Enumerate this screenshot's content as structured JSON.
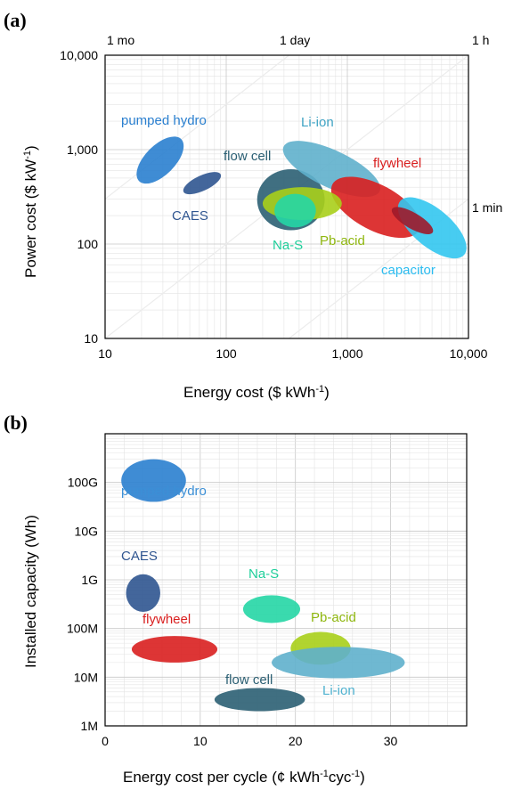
{
  "panels": [
    {
      "panel_label": "(a)",
      "chart_data": {
        "type": "scatter",
        "xscale": "log",
        "yscale": "log",
        "xlim": [
          10,
          10000
        ],
        "ylim": [
          10,
          10000
        ],
        "xlabel": "Energy cost ($ kWh",
        "xlabel_sup": "-1",
        "xlabel_end": ")",
        "ylabel": "Power cost ($ kW",
        "ylabel_sup": "-1",
        "ylabel_end": ")",
        "xticks": [
          "10",
          "100",
          "1,000",
          "10,000"
        ],
        "yticks": [
          "10",
          "100",
          "1,000",
          "10,000"
        ],
        "top_labels": [
          "1 mo",
          "1 day",
          "1 h"
        ],
        "right_label": "1 min",
        "grid": true,
        "regions": [
          {
            "name": "pumped hydro",
            "color": "#2a7fcf",
            "text_color": "#2a7fcf",
            "x_range": [
              18,
              45
            ],
            "y_range": [
              400,
              1500
            ],
            "angle": -45
          },
          {
            "name": "CAES",
            "color": "#2f5590",
            "text_color": "#2f5590",
            "x_range": [
              50,
              80
            ],
            "y_range": [
              260,
              750
            ],
            "angle": -25
          },
          {
            "name": "flow cell",
            "color": "#2b5f73",
            "text_color": "#2b5f73",
            "x_range": [
              180,
              650
            ],
            "y_range": [
              140,
              620
            ],
            "angle": 0
          },
          {
            "name": "Li-ion",
            "color": "#5fb0cc",
            "text_color": "#3fa3c4",
            "x_range": [
              250,
              2200
            ],
            "y_range": [
              300,
              1300
            ],
            "angle": 25
          },
          {
            "name": "flywheel",
            "color": "#d91f1f",
            "text_color": "#d91f1f",
            "x_range": [
              700,
              4200
            ],
            "y_range": [
              100,
              600
            ],
            "angle": 28
          },
          {
            "name": "capacitor",
            "color": "#33c6f0",
            "text_color": "#2bbcf0",
            "x_range": [
              2800,
              9000
            ],
            "y_range": [
              55,
              400
            ],
            "angle": 40
          },
          {
            "name": "Pb-acid",
            "color": "#a8cf1a",
            "text_color": "#8fb70f",
            "x_range": [
              200,
              900
            ],
            "y_range": [
              180,
              400
            ],
            "angle": 0
          },
          {
            "name": "Na-S",
            "color": "#25d6a5",
            "text_color": "#1fcf9b",
            "x_range": [
              250,
              550
            ],
            "y_range": [
              150,
              340
            ],
            "angle": 0
          },
          {
            "name": "flywheel-capacitor overlap",
            "color": "#9e1a2a",
            "text_color": "#9e1a2a",
            "x_range": [
              2700,
              4400
            ],
            "y_range": [
              95,
              330
            ],
            "angle": 30
          }
        ]
      }
    },
    {
      "panel_label": "(b)",
      "chart_data": {
        "type": "scatter",
        "xscale": "linear",
        "yscale": "log",
        "xlim": [
          0,
          38
        ],
        "ylim": [
          1000000,
          1000000000000
        ],
        "xlabel": "Energy cost per cycle (¢ kWh",
        "xlabel_sup1": "-1",
        "xlabel_mid": "cyc",
        "xlabel_sup2": "-1",
        "xlabel_end": ")",
        "ylabel": "Installed capacity (Wh)",
        "xticks": [
          "0",
          "10",
          "20",
          "30"
        ],
        "yticks": [
          "1M",
          "10M",
          "100M",
          "1G",
          "10G",
          "100G"
        ],
        "grid": true,
        "regions": [
          {
            "name": "pumped hydro",
            "color": "#2a7fcf",
            "text_color": "#3b8fd6",
            "x_range": [
              1.7,
              8.5
            ],
            "y_range": [
              40000000000,
              300000000000
            ]
          },
          {
            "name": "CAES",
            "color": "#2f5590",
            "text_color": "#2f5590",
            "x_range": [
              2.2,
              5.8
            ],
            "y_range": [
              220000000,
              1300000000
            ]
          },
          {
            "name": "Na-S",
            "color": "#25d6a5",
            "text_color": "#1fcf9b",
            "x_range": [
              14.5,
              20.5
            ],
            "y_range": [
              130000000,
              480000000
            ]
          },
          {
            "name": "flywheel",
            "color": "#d91f1f",
            "text_color": "#d91f1f",
            "x_range": [
              2.8,
              11.8
            ],
            "y_range": [
              20000000,
              70000000
            ]
          },
          {
            "name": "Pb-acid",
            "color": "#a8cf1a",
            "text_color": "#8fb70f",
            "x_range": [
              19.5,
              25.8
            ],
            "y_range": [
              18000000,
              85000000
            ]
          },
          {
            "name": "Li-ion",
            "color": "#5fb0cc",
            "text_color": "#4fb2d0",
            "x_range": [
              17.5,
              31.5
            ],
            "y_range": [
              9500000,
              42000000
            ]
          },
          {
            "name": "flow cell",
            "color": "#2b5f73",
            "text_color": "#2b5f73",
            "x_range": [
              11.5,
              21
            ],
            "y_range": [
              2000000,
              6000000
            ]
          }
        ]
      }
    }
  ]
}
